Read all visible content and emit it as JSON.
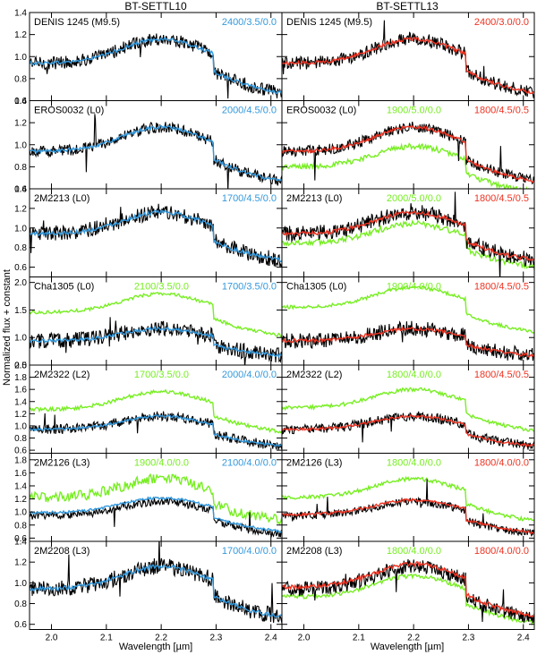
{
  "figure": {
    "column_titles": [
      "BT-SETTL10",
      "BT-SETTL13"
    ],
    "xlabel": "Wavelength [µm]",
    "ylabel": "Normalized flux + constant"
  },
  "colors": {
    "observed": "#000000",
    "model_blue": "#3399dd",
    "model_green": "#77ee22",
    "model_red": "#ee3322"
  },
  "chart_data": [
    {
      "type": "line",
      "panel": "BT-SETTL10 / DENIS 1245",
      "object_label": "DENIS 1245 (M9.5)",
      "model_labels": [
        {
          "text": "2400/3.5/0.0",
          "color": "blue"
        }
      ],
      "xlim": [
        1.96,
        2.42
      ],
      "ylim": [
        0.6,
        1.4
      ],
      "y_ticks": [
        "0.6",
        "0.8",
        "1.0",
        "1.2",
        "1.4"
      ],
      "series": [
        {
          "color": "black",
          "kind": "observed",
          "level": 1.0,
          "noise": 0.06
        },
        {
          "color": "blue",
          "kind": "model",
          "level": 1.0,
          "noise": 0.015
        }
      ]
    },
    {
      "type": "line",
      "panel": "BT-SETTL13 / DENIS 1245",
      "object_label": "DENIS 1245 (M9.5)",
      "model_labels": [
        {
          "text": "2400/3.0/0.0",
          "color": "red"
        }
      ],
      "xlim": [
        1.96,
        2.42
      ],
      "ylim": [
        0.6,
        1.4
      ],
      "y_ticks": [
        "0.6",
        "0.8",
        "1.0",
        "1.2",
        "1.4"
      ],
      "series": [
        {
          "color": "black",
          "kind": "observed",
          "level": 1.0,
          "noise": 0.06
        },
        {
          "color": "red",
          "kind": "model",
          "level": 1.0,
          "noise": 0.015
        }
      ]
    },
    {
      "type": "line",
      "panel": "BT-SETTL10 / EROS0032",
      "object_label": "EROS0032 (L0)",
      "model_labels": [
        {
          "text": "2000/4.5/0.0",
          "color": "blue"
        }
      ],
      "xlim": [
        1.96,
        2.42
      ],
      "ylim": [
        0.6,
        1.4
      ],
      "y_ticks": [
        "0.6",
        "0.8",
        "1.0",
        "1.2",
        "1.4"
      ],
      "series": [
        {
          "color": "black",
          "kind": "observed",
          "level": 1.0,
          "noise": 0.05
        },
        {
          "color": "blue",
          "kind": "model",
          "level": 1.0,
          "noise": 0.015
        }
      ]
    },
    {
      "type": "line",
      "panel": "BT-SETTL13 / EROS0032",
      "object_label": "EROS0032 (L0)",
      "model_labels": [
        {
          "text": "1900/5.0/0.0",
          "color": "green"
        },
        {
          "text": "1800/4.5/0.5",
          "color": "red"
        }
      ],
      "xlim": [
        1.96,
        2.42
      ],
      "ylim": [
        0.6,
        1.4
      ],
      "y_ticks": [
        "0.6",
        "0.8",
        "1.0",
        "1.2",
        "1.4"
      ],
      "series": [
        {
          "color": "green",
          "kind": "model",
          "level": 0.85,
          "noise": 0.025
        },
        {
          "color": "black",
          "kind": "observed",
          "level": 1.0,
          "noise": 0.05
        },
        {
          "color": "red",
          "kind": "model",
          "level": 1.0,
          "noise": 0.015
        }
      ]
    },
    {
      "type": "line",
      "panel": "BT-SETTL10 / 2M2213",
      "object_label": "2M2213 (L0)",
      "model_labels": [
        {
          "text": "1700/4.5/0.0",
          "color": "blue"
        }
      ],
      "xlim": [
        1.96,
        2.42
      ],
      "ylim": [
        0.5,
        1.4
      ],
      "y_ticks": [
        "0.6",
        "0.8",
        "1.0",
        "1.2",
        "1.4"
      ],
      "series": [
        {
          "color": "black",
          "kind": "observed",
          "level": 1.0,
          "noise": 0.08
        },
        {
          "color": "blue",
          "kind": "model",
          "level": 1.0,
          "noise": 0.02
        }
      ]
    },
    {
      "type": "line",
      "panel": "BT-SETTL13 / 2M2213",
      "object_label": "2M2213 (L0)",
      "model_labels": [
        {
          "text": "2000/5.0/0.0",
          "color": "green"
        },
        {
          "text": "1800/4.5/0.5",
          "color": "red"
        }
      ],
      "xlim": [
        1.96,
        2.42
      ],
      "ylim": [
        0.5,
        1.4
      ],
      "y_ticks": [
        "0.6",
        "0.8",
        "1.0",
        "1.2",
        "1.4"
      ],
      "series": [
        {
          "color": "green",
          "kind": "model",
          "level": 0.9,
          "noise": 0.03
        },
        {
          "color": "black",
          "kind": "observed",
          "level": 1.0,
          "noise": 0.08
        },
        {
          "color": "red",
          "kind": "model",
          "level": 1.0,
          "noise": 0.02
        }
      ]
    },
    {
      "type": "line",
      "panel": "BT-SETTL10 / Cha1305",
      "object_label": "Cha1305 (L0)",
      "model_labels": [
        {
          "text": "2100/3.5/0.0",
          "color": "green"
        },
        {
          "text": "1700/3.5/0.0",
          "color": "blue"
        }
      ],
      "xlim": [
        1.96,
        2.42
      ],
      "ylim": [
        0.5,
        2.1
      ],
      "y_ticks": [
        "0.5",
        "1.0",
        "1.5",
        "2.0"
      ],
      "series": [
        {
          "color": "green",
          "kind": "model",
          "level": 1.55,
          "noise": 0.03
        },
        {
          "color": "black",
          "kind": "observed",
          "level": 1.0,
          "noise": 0.14
        },
        {
          "color": "blue",
          "kind": "model",
          "level": 1.0,
          "noise": 0.03
        }
      ]
    },
    {
      "type": "line",
      "panel": "BT-SETTL13 / Cha1305",
      "object_label": "Cha1305 (L0)",
      "model_labels": [
        {
          "text": "1900/4.0/0.0",
          "color": "green"
        },
        {
          "text": "1800/4.5/0.5",
          "color": "red"
        }
      ],
      "xlim": [
        1.96,
        2.42
      ],
      "ylim": [
        0.5,
        2.1
      ],
      "y_ticks": [
        "0.5",
        "1.0",
        "1.5",
        "2.0"
      ],
      "series": [
        {
          "color": "green",
          "kind": "model",
          "level": 1.65,
          "noise": 0.03
        },
        {
          "color": "black",
          "kind": "observed",
          "level": 1.0,
          "noise": 0.14
        },
        {
          "color": "red",
          "kind": "model",
          "level": 1.0,
          "noise": 0.03
        }
      ]
    },
    {
      "type": "line",
      "panel": "BT-SETTL10 / 2M2322",
      "object_label": "2M2322 (L2)",
      "model_labels": [
        {
          "text": "1700/3.5/0.0",
          "color": "green"
        },
        {
          "text": "2000/4.0/0.0",
          "color": "blue"
        }
      ],
      "xlim": [
        1.96,
        2.42
      ],
      "ylim": [
        0.55,
        2.0
      ],
      "y_ticks": [
        "0.6",
        "0.8",
        "1.0",
        "1.2",
        "1.4",
        "1.6",
        "1.8",
        "2.0"
      ],
      "series": [
        {
          "color": "green",
          "kind": "model",
          "level": 1.35,
          "noise": 0.03
        },
        {
          "color": "black",
          "kind": "observed",
          "level": 1.0,
          "noise": 0.08
        },
        {
          "color": "blue",
          "kind": "model",
          "level": 1.0,
          "noise": 0.02
        }
      ]
    },
    {
      "type": "line",
      "panel": "BT-SETTL13 / 2M2322",
      "object_label": "2M2322 (L2)",
      "model_labels": [
        {
          "text": "1800/4.0/0.0",
          "color": "green"
        },
        {
          "text": "1800/4.5/0.5",
          "color": "red"
        }
      ],
      "xlim": [
        1.96,
        2.42
      ],
      "ylim": [
        0.55,
        2.0
      ],
      "y_ticks": [
        "0.6",
        "0.8",
        "1.0",
        "1.2",
        "1.4",
        "1.6",
        "1.8",
        "2.0"
      ],
      "series": [
        {
          "color": "green",
          "kind": "model",
          "level": 1.38,
          "noise": 0.03
        },
        {
          "color": "black",
          "kind": "observed",
          "level": 1.0,
          "noise": 0.08
        },
        {
          "color": "red",
          "kind": "model",
          "level": 1.0,
          "noise": 0.02
        }
      ]
    },
    {
      "type": "line",
      "panel": "BT-SETTL10 / 2M2126",
      "object_label": "2M2126 (L3)",
      "model_labels": [
        {
          "text": "1900/4.0/0.0",
          "color": "green"
        },
        {
          "text": "2100/4.0/0.0",
          "color": "blue"
        }
      ],
      "xlim": [
        1.96,
        2.42
      ],
      "ylim": [
        0.55,
        1.9
      ],
      "y_ticks": [
        "0.6",
        "0.8",
        "1.0",
        "1.2",
        "1.4",
        "1.6",
        "1.8"
      ],
      "series": [
        {
          "color": "green",
          "kind": "model",
          "level": 1.3,
          "noise": 0.08
        },
        {
          "color": "black",
          "kind": "observed",
          "level": 1.0,
          "noise": 0.06
        },
        {
          "color": "blue",
          "kind": "model",
          "level": 1.05,
          "noise": 0.02
        }
      ]
    },
    {
      "type": "line",
      "panel": "BT-SETTL13 / 2M2126",
      "object_label": "2M2126 (L3)",
      "model_labels": [
        {
          "text": "1800/4.0/0.0",
          "color": "green"
        },
        {
          "text": "1800/4.0/0.0",
          "color": "red"
        }
      ],
      "xlim": [
        1.96,
        2.42
      ],
      "ylim": [
        0.55,
        1.9
      ],
      "y_ticks": [
        "0.6",
        "0.8",
        "1.0",
        "1.2",
        "1.4",
        "1.6",
        "1.8"
      ],
      "series": [
        {
          "color": "green",
          "kind": "model",
          "level": 1.3,
          "noise": 0.03
        },
        {
          "color": "black",
          "kind": "observed",
          "level": 1.0,
          "noise": 0.06
        },
        {
          "color": "red",
          "kind": "model",
          "level": 1.02,
          "noise": 0.02
        }
      ]
    },
    {
      "type": "line",
      "panel": "BT-SETTL10 / 2M2208",
      "object_label": "2M2208 (L3)",
      "model_labels": [
        {
          "text": "1700/4.0/0.0",
          "color": "blue"
        }
      ],
      "xlim": [
        1.96,
        2.42
      ],
      "ylim": [
        0.55,
        1.4
      ],
      "y_ticks": [
        "0.6",
        "0.8",
        "1.0",
        "1.2",
        "1.4"
      ],
      "series": [
        {
          "color": "black",
          "kind": "observed",
          "level": 1.0,
          "noise": 0.08
        },
        {
          "color": "blue",
          "kind": "model",
          "level": 1.0,
          "noise": 0.02
        }
      ]
    },
    {
      "type": "line",
      "panel": "BT-SETTL13 / 2M2208",
      "object_label": "2M2208 (L3)",
      "model_labels": [
        {
          "text": "1800/4.0/0.0",
          "color": "green"
        },
        {
          "text": "1800/4.0/0.0",
          "color": "red"
        }
      ],
      "xlim": [
        1.96,
        2.42
      ],
      "ylim": [
        0.55,
        1.4
      ],
      "y_ticks": [
        "0.6",
        "0.8",
        "1.0",
        "1.2",
        "1.4"
      ],
      "series": [
        {
          "color": "green",
          "kind": "model",
          "level": 0.92,
          "noise": 0.02
        },
        {
          "color": "black",
          "kind": "observed",
          "level": 1.0,
          "noise": 0.07
        },
        {
          "color": "red",
          "kind": "model",
          "level": 1.02,
          "noise": 0.02
        }
      ]
    }
  ],
  "x_ticks": [
    "2.0",
    "2.1",
    "2.2",
    "2.3",
    "2.4"
  ]
}
